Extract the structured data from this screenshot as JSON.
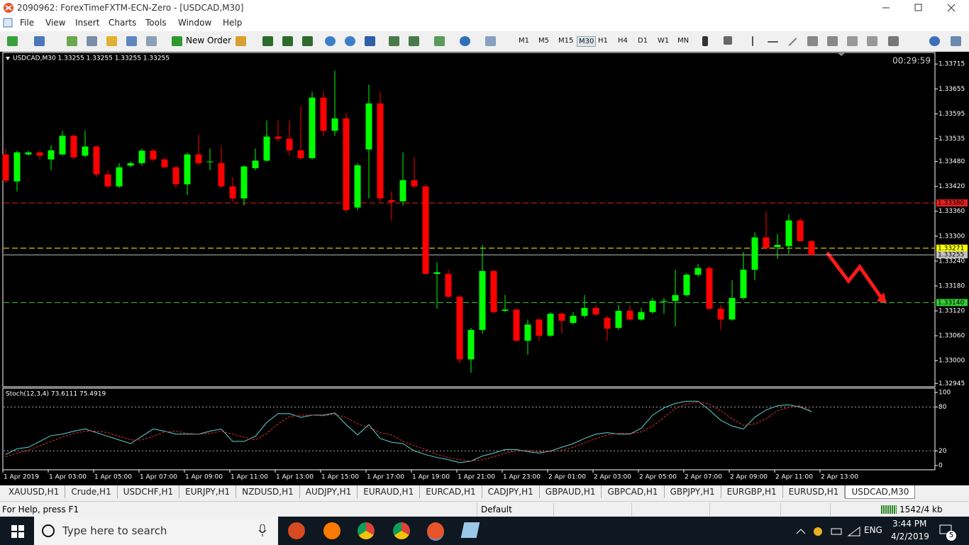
{
  "window": {
    "title": "2090962: ForexTimeFXTM-ECN-Zero - [USDCAD,M30]"
  },
  "menu": [
    "File",
    "View",
    "Insert",
    "Charts",
    "Tools",
    "Window",
    "Help"
  ],
  "toolbar": {
    "new_order": "New Order",
    "timeframes": [
      "M1",
      "M5",
      "M15",
      "M30",
      "H1",
      "H4",
      "D1",
      "W1",
      "MN"
    ],
    "active_timeframe": 3
  },
  "chart_data": {
    "type": "candlestick",
    "header": "USDCAD,M30  1.33255 1.33255 1.33255 1.33255",
    "timer": "00:29:59",
    "up_color": "#00ff00",
    "down_color": "#ff0000",
    "open": [
      1.33497,
      1.33432,
      1.33497,
      1.33502,
      1.33485,
      1.33497,
      1.33542,
      1.33494,
      1.33516,
      1.33449,
      1.3342,
      1.3347,
      1.33476,
      1.33506,
      1.33485,
      1.33466,
      1.33425,
      1.33497,
      1.3348,
      1.33476,
      1.3342,
      1.33391,
      1.33464,
      1.33482,
      1.3354,
      1.33535,
      1.33507,
      1.33488,
      1.33634,
      1.33554,
      1.33584,
      1.33369,
      1.33509,
      1.3362,
      1.33387,
      1.33384,
      1.33435,
      1.3342,
      1.33209,
      1.33209,
      1.33154,
      1.33003,
      1.33074,
      1.33216,
      1.3312,
      1.33123,
      1.33048,
      1.33099,
      1.3306,
      1.33113,
      1.33091,
      1.33108,
      1.33127,
      1.33103,
      1.33079,
      1.3312,
      1.33099,
      1.33117,
      1.33144,
      1.33144,
      1.33158,
      1.33207,
      1.33223,
      1.33125,
      1.33099,
      1.33151,
      1.33219,
      1.33297,
      1.33274,
      1.33276,
      1.33338,
      1.33288
    ],
    "high": [
      1.33511,
      1.33506,
      1.33506,
      1.33506,
      1.33519,
      1.33554,
      1.33545,
      1.33554,
      1.33519,
      1.33459,
      1.33476,
      1.3348,
      1.33511,
      1.33511,
      1.3349,
      1.3347,
      1.33502,
      1.33545,
      1.33511,
      1.33516,
      1.33442,
      1.33471,
      1.33511,
      1.33579,
      1.33579,
      1.33579,
      1.33614,
      1.33648,
      1.33648,
      1.33699,
      1.33596,
      1.33476,
      1.33665,
      1.33648,
      1.33408,
      1.33502,
      1.3349,
      1.33425,
      1.33237,
      1.33219,
      1.33158,
      1.33079,
      1.33279,
      1.33219,
      1.33158,
      1.33125,
      1.33099,
      1.33103,
      1.33117,
      1.33117,
      1.33117,
      1.33158,
      1.33134,
      1.33108,
      1.33134,
      1.33134,
      1.33127,
      1.33151,
      1.33151,
      1.33219,
      1.33211,
      1.33233,
      1.33228,
      1.33134,
      1.33194,
      1.33262,
      1.33309,
      1.3336,
      1.33305,
      1.33353,
      1.33343,
      1.33291
    ],
    "low": [
      1.33428,
      1.33408,
      1.33494,
      1.33485,
      1.33459,
      1.33494,
      1.33485,
      1.3349,
      1.33442,
      1.33416,
      1.33416,
      1.33466,
      1.3347,
      1.3348,
      1.33464,
      1.33416,
      1.33399,
      1.33471,
      1.33459,
      1.33416,
      1.33382,
      1.33374,
      1.33459,
      1.3348,
      1.33528,
      1.33494,
      1.33485,
      1.33485,
      1.33542,
      1.33542,
      1.33357,
      1.33363,
      1.33391,
      1.33382,
      1.33338,
      1.33374,
      1.33416,
      1.33207,
      1.33125,
      1.33151,
      1.32993,
      1.32971,
      1.33065,
      1.33113,
      1.33117,
      1.33045,
      1.33014,
      1.33048,
      1.33057,
      1.33065,
      1.33087,
      1.33103,
      1.33108,
      1.33048,
      1.33074,
      1.33096,
      1.33096,
      1.33113,
      1.33113,
      1.33082,
      1.33154,
      1.33202,
      1.33122,
      1.33074,
      1.33096,
      1.33147,
      1.33194,
      1.33267,
      1.33245,
      1.33257,
      1.33288,
      1.33254
    ],
    "close": [
      1.33434,
      1.33502,
      1.33502,
      1.33494,
      1.33507,
      1.33542,
      1.3349,
      1.33516,
      1.33449,
      1.3342,
      1.33466,
      1.33476,
      1.33506,
      1.33485,
      1.33466,
      1.33425,
      1.33497,
      1.33476,
      1.3348,
      1.3342,
      1.33391,
      1.33468,
      1.33482,
      1.3354,
      1.33535,
      1.33507,
      1.33488,
      1.33634,
      1.33554,
      1.33584,
      1.33363,
      1.33471,
      1.3362,
      1.33391,
      1.33382,
      1.33435,
      1.3342,
      1.33209,
      1.33213,
      1.33154,
      1.33003,
      1.33074,
      1.33216,
      1.33117,
      1.33123,
      1.33048,
      1.33087,
      1.3306,
      1.33113,
      1.33096,
      1.33108,
      1.33127,
      1.33111,
      1.33077,
      1.3312,
      1.33099,
      1.33117,
      1.33144,
      1.33144,
      1.33158,
      1.33207,
      1.33223,
      1.33125,
      1.33099,
      1.33151,
      1.33219,
      1.33297,
      1.33271,
      1.33279,
      1.33338,
      1.33288,
      1.33255
    ],
    "ylim": [
      1.32937,
      1.33741
    ],
    "yticks": [
      {
        "value": 1.33715,
        "label": "1.33715"
      },
      {
        "value": 1.33655,
        "label": "1.33655"
      },
      {
        "value": 1.33595,
        "label": "1.33595"
      },
      {
        "value": 1.33535,
        "label": "1.33535"
      },
      {
        "value": 1.3348,
        "label": "1.33480"
      },
      {
        "value": 1.3342,
        "label": "1.33420"
      },
      {
        "value": 1.3336,
        "label": "1.33360"
      },
      {
        "value": 1.333,
        "label": "1.33300"
      },
      {
        "value": 1.3324,
        "label": "1.33240"
      },
      {
        "value": 1.3318,
        "label": "1.33180"
      },
      {
        "value": 1.3312,
        "label": "1.33120"
      },
      {
        "value": 1.3306,
        "label": "1.33060"
      },
      {
        "value": 1.33,
        "label": "1.33000"
      },
      {
        "value": 1.32945,
        "label": "1.32945"
      }
    ],
    "levels": [
      {
        "value": 1.3338,
        "label": "1.33380",
        "color": "#e02020",
        "dashed": true
      },
      {
        "value": 1.33271,
        "label": "1.33271",
        "color": "#ffff00",
        "dashed": true
      },
      {
        "value": 1.33255,
        "label": "1.33255",
        "color": "#c0c0c0",
        "dashed": false
      },
      {
        "value": 1.3314,
        "label": "1.33140",
        "color": "#32cd32",
        "dashed": true
      }
    ],
    "time_labels": [
      "1 Apr 2019",
      "1 Apr 03:00",
      "1 Apr 05:00",
      "1 Apr 07:00",
      "1 Apr 09:00",
      "1 Apr 11:00",
      "1 Apr 13:00",
      "1 Apr 15:00",
      "1 Apr 17:00",
      "1 Apr 19:00",
      "1 Apr 21:00",
      "1 Apr 23:00",
      "2 Apr 01:00",
      "2 Apr 03:00",
      "2 Apr 05:00",
      "2 Apr 07:00",
      "2 Apr 09:00",
      "2 Apr 11:00",
      "2 Apr 13:00"
    ]
  },
  "indicator": {
    "type": "line",
    "title": "Stoch(12,3,4) 73.6111 75.4919",
    "ylim": [
      -5.8,
      104.9
    ],
    "yticks": [
      100,
      80,
      20,
      0
    ],
    "levels": [
      80,
      20
    ],
    "series": [
      {
        "color": "#5fd3d3",
        "dashed": false,
        "values": [
          15,
          23,
          25,
          33,
          41,
          43,
          47,
          50,
          45,
          40,
          35,
          30,
          40,
          50,
          47,
          43,
          43,
          43,
          47,
          50,
          33,
          33,
          40,
          59,
          71,
          71,
          66,
          69,
          69,
          72,
          56,
          42,
          56,
          37,
          32,
          30,
          20,
          15,
          11,
          8,
          4,
          6,
          13,
          17,
          22,
          22,
          19,
          17,
          20,
          25,
          30,
          37,
          43,
          45,
          43,
          43,
          51,
          69,
          79,
          85,
          88,
          88,
          76,
          62,
          54,
          50,
          66,
          76,
          82,
          83,
          80,
          73.6111
        ]
      },
      {
        "color": "#e03030",
        "dashed": true,
        "values": [
          12,
          17,
          21,
          27,
          33,
          39,
          44,
          47,
          47,
          45,
          40,
          35,
          35,
          40,
          46,
          47,
          44,
          43,
          44,
          47,
          43,
          39,
          35,
          44,
          57,
          67,
          69,
          69,
          68,
          70,
          66,
          57,
          52,
          45,
          42,
          33,
          27,
          22,
          15,
          11,
          8,
          6,
          8,
          12,
          17,
          20,
          21,
          19,
          19,
          21,
          25,
          31,
          37,
          42,
          44,
          44,
          46,
          54,
          66,
          78,
          84,
          87,
          84,
          75,
          64,
          55,
          57,
          64,
          75,
          80,
          82,
          75.4919
        ]
      }
    ]
  },
  "tabs": [
    "XAUUSD,H1",
    "Crude,H1",
    "USDCHF,H1",
    "EURJPY,H1",
    "NZDUSD,H1",
    "AUDJPY,H1",
    "EURAUD,H1",
    "EURCAD,H1",
    "CADJPY,H1",
    "GBPAUD,H1",
    "GBPCAD,H1",
    "GBPJPY,H1",
    "EURGBP,H1",
    "EURUSD,H1",
    "USDCAD,M30"
  ],
  "active_tab": 14,
  "status": {
    "help": "For Help, press F1",
    "profile": "Default",
    "traffic": "1542/4 kb"
  },
  "taskbar": {
    "search": "Type here to search",
    "language": "ENG",
    "time": "3:44 PM",
    "date": "4/2/2019",
    "notifications": 5
  }
}
